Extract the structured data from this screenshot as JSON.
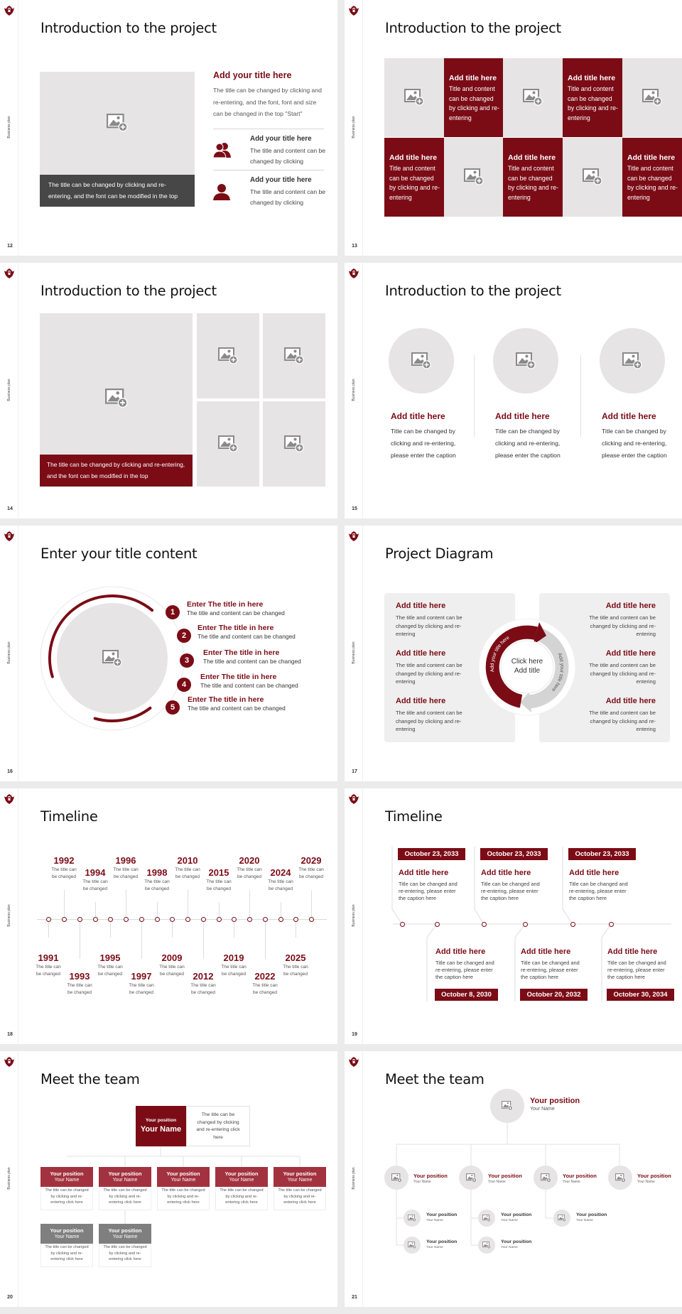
{
  "sidebar_label": "Business plan",
  "colors": {
    "accent": "#7b0c16",
    "placeholder": "#e6e4e4",
    "caption_dark": "#474747",
    "card_red": "#a2323f",
    "card_gray": "#7f7f7f"
  },
  "slides": [
    {
      "number": "12",
      "title": "Introduction to the project",
      "image_caption": "The title can be changed by clicking and re-entering, and the font can be modified in the top",
      "heading": "Add your title here",
      "body": "The title can be changed by clicking and re-entering, and the font, font and size can be changed in the top \"Start\"",
      "items": [
        {
          "icon": "people-icon",
          "title": "Add your title here",
          "body": "The title and content can be changed by clicking"
        },
        {
          "icon": "person-icon",
          "title": "Add your title here",
          "body": "The title and content can be changed by clicking"
        }
      ]
    },
    {
      "number": "13",
      "title": "Introduction to the project",
      "cells": [
        {
          "type": "image"
        },
        {
          "type": "text",
          "title": "Add title here",
          "body": "Title and content can be changed by clicking and re-entering"
        },
        {
          "type": "image"
        },
        {
          "type": "text",
          "title": "Add title here",
          "body": "Title and content can be changed by clicking and re-entering"
        },
        {
          "type": "image"
        },
        {
          "type": "text",
          "title": "Add title here",
          "body": "Title and content can be changed by clicking and re-entering"
        },
        {
          "type": "image"
        },
        {
          "type": "text",
          "title": "Add title here",
          "body": "Title and content can be changed by clicking and re-entering"
        },
        {
          "type": "image"
        },
        {
          "type": "text",
          "title": "Add title here",
          "body": "Title and content can be changed by clicking and re-entering"
        }
      ]
    },
    {
      "number": "14",
      "title": "Introduction to the project",
      "image_caption": "The title can be changed by clicking and re-entering, and the font can be modified in the top"
    },
    {
      "number": "15",
      "title": "Introduction to the project",
      "columns": [
        {
          "title": "Add title here",
          "body": "Title can be changed by clicking and re-entering, please enter the caption"
        },
        {
          "title": "Add title here",
          "body": "Title can be changed by clicking and re-entering, please enter the caption"
        },
        {
          "title": "Add title here",
          "body": "Title can be changed by clicking and re-entering, please enter the caption"
        }
      ]
    },
    {
      "number": "16",
      "title": "Enter your title content",
      "items": [
        {
          "num": "1",
          "title": "Enter The title in here",
          "body": "The title and content can be changed"
        },
        {
          "num": "2",
          "title": "Enter The title in here",
          "body": "The title and content can be changed"
        },
        {
          "num": "3",
          "title": "Enter The title in here",
          "body": "The title and content can be changed"
        },
        {
          "num": "4",
          "title": "Enter The title in here",
          "body": "The title and content can be changed"
        },
        {
          "num": "5",
          "title": "Enter The title in here",
          "body": "The title and content can be changed"
        }
      ]
    },
    {
      "number": "17",
      "title": "Project Diagram",
      "center_line1": "Click here",
      "center_line2": "Add title",
      "arrow_left_label": "Add your title here",
      "arrow_right_label": "Add your title here",
      "left_items": [
        {
          "title": "Add title here",
          "body": "The title and content can be changed by clicking and re-entering"
        },
        {
          "title": "Add title here",
          "body": "The title and content can be changed by clicking and re-entering"
        },
        {
          "title": "Add title here",
          "body": "The title and content can be changed by clicking and re-entering"
        }
      ],
      "right_items": [
        {
          "title": "Add title here",
          "body": "The title and content can be changed by clicking and re-entering"
        },
        {
          "title": "Add title here",
          "body": "The title and content can be changed by clicking and re-entering"
        },
        {
          "title": "Add title here",
          "body": "The title and content can be changed by clicking and re-entering"
        }
      ]
    },
    {
      "number": "18",
      "title": "Timeline",
      "events": [
        {
          "year": "1991",
          "text": "The title can be changed"
        },
        {
          "year": "1992",
          "text": "The title can be changed"
        },
        {
          "year": "1993",
          "text": "The title can be changed"
        },
        {
          "year": "1994",
          "text": "The title can be changed"
        },
        {
          "year": "1995",
          "text": "The title can be changed"
        },
        {
          "year": "1996",
          "text": "The title can be changed"
        },
        {
          "year": "1997",
          "text": "The title can be changed"
        },
        {
          "year": "1998",
          "text": "The title can be changed"
        },
        {
          "year": "2009",
          "text": "The title can be changed"
        },
        {
          "year": "2010",
          "text": "The title can be changed"
        },
        {
          "year": "2012",
          "text": "The title can be changed"
        },
        {
          "year": "2015",
          "text": "The title can be changed"
        },
        {
          "year": "2019",
          "text": "The title can be changed"
        },
        {
          "year": "2020",
          "text": "The title can be changed"
        },
        {
          "year": "2022",
          "text": "The title can be changed"
        },
        {
          "year": "2024",
          "text": "The title can be changed"
        },
        {
          "year": "2025",
          "text": "The title can be changed"
        },
        {
          "year": "2029",
          "text": "The title can be changed"
        }
      ]
    },
    {
      "number": "19",
      "title": "Timeline",
      "top": [
        {
          "date": "October 23, 2033",
          "title": "Add title here",
          "body": "Title can be changed and re-entering, please enter the caption here"
        },
        {
          "date": "October 23, 2033",
          "title": "Add title here",
          "body": "Title can be changed and re-entering, please enter the caption here"
        },
        {
          "date": "October 23, 2033",
          "title": "Add title here",
          "body": "Title can be changed and re-entering, please enter the caption here"
        }
      ],
      "bottom": [
        {
          "date": "October 8, 2030",
          "title": "Add title here",
          "body": "Title can be changed and re-entering, please enter the caption here"
        },
        {
          "date": "October 20, 2032",
          "title": "Add title here",
          "body": "Title can be changed and re-entering, please enter the caption here"
        },
        {
          "date": "October 30, 2034",
          "title": "Add title here",
          "body": "Title can be changed and re-entering, please enter the caption here"
        }
      ]
    },
    {
      "number": "20",
      "title": "Meet the team",
      "lead": {
        "position": "Your position",
        "name": "Your Name",
        "desc": "The title can be changed by clicking and re-entering click here"
      },
      "row1": [
        {
          "position": "Your position",
          "name": "Your Name",
          "desc": "The title can be changed by clicking and re-entering click here"
        },
        {
          "position": "Your position",
          "name": "Your Name",
          "desc": "The title can be changed by clicking and re-entering click here"
        },
        {
          "position": "Your position",
          "name": "Your Name",
          "desc": "The title can be changed by clicking and re-entering click here"
        },
        {
          "position": "Your position",
          "name": "Your Name",
          "desc": "The title can be changed by clicking and re-entering click here"
        },
        {
          "position": "Your position",
          "name": "Your Name",
          "desc": "The title can be changed by clicking and re-entering click here"
        }
      ],
      "row2": [
        {
          "position": "Your position",
          "name": "Your Name",
          "desc": "The title can be changed by clicking and re-entering click here"
        },
        {
          "position": "Your position",
          "name": "Your Name",
          "desc": "The title can be changed by clicking and re-entering click here"
        }
      ]
    },
    {
      "number": "21",
      "title": "Meet the team",
      "head": {
        "position": "Your position",
        "name": "Your Name"
      },
      "level2": [
        {
          "position": "Your position",
          "name": "Your Name"
        },
        {
          "position": "Your position",
          "name": "Your Name"
        },
        {
          "position": "Your position",
          "name": "Your Name"
        },
        {
          "position": "Your position",
          "name": "Your Name"
        }
      ],
      "level3": [
        {
          "position": "Your position",
          "name": "Your Name"
        },
        {
          "position": "Your position",
          "name": "Your Name"
        },
        {
          "position": "Your position",
          "name": "Your Name"
        },
        {
          "position": "Your position",
          "name": "Your Name"
        },
        {
          "position": "Your position",
          "name": "Your Name"
        }
      ]
    }
  ]
}
